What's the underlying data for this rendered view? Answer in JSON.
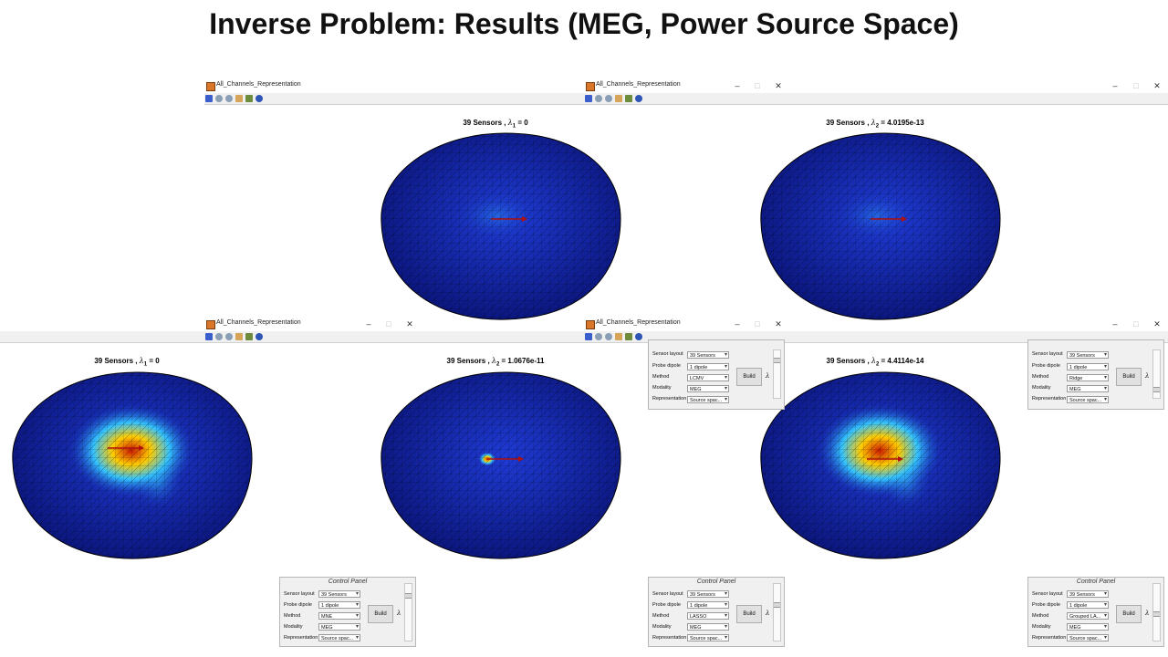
{
  "slide": {
    "title": "Inverse Problem: Results (MEG, Power Source Space)"
  },
  "windows": [
    {
      "title": "All_Channels_Representation"
    },
    {
      "title": "All_Channels_Representation"
    },
    {
      "title": "All_Channels_Representation"
    },
    {
      "title": "All_Channels_Representation"
    }
  ],
  "window_controls": {
    "minimize": "–",
    "maximize": "□",
    "close": "✕"
  },
  "plots": [
    {
      "title": "39 Sensors , ",
      "lambda_symbol": "λ",
      "subscript": "1",
      "value": " = 0",
      "activation": "none",
      "arrow_color": "#b01010"
    },
    {
      "title": "39 Sensors , ",
      "lambda_symbol": "λ",
      "subscript": "2",
      "value": " = 4.0195e-13",
      "activation": "none",
      "arrow_color": "#b01010"
    },
    {
      "title": "39 Sensors , ",
      "lambda_symbol": "λ",
      "subscript": "1",
      "value": " = 0",
      "activation": "broad",
      "arrow_color": "#b01010"
    },
    {
      "title": "39 Sensors , ",
      "lambda_symbol": "λ",
      "subscript": "2",
      "value": " = 1.0676e-11",
      "activation": "focal",
      "arrow_color": "#b01010"
    },
    {
      "title": "39 Sensors , ",
      "lambda_symbol": "λ",
      "subscript": "2",
      "value": " = 4.4114e-14",
      "activation": "broad",
      "arrow_color": "#b01010"
    }
  ],
  "control_panels": [
    {
      "title": "Control Panel",
      "labels": [
        "Sensor layout",
        "Probe dipole",
        "Method",
        "Modality",
        "Representation"
      ],
      "values": [
        "39 Sensors",
        "1 dipole",
        "LCMV",
        "MEG",
        "Source spac..."
      ],
      "build": "Build",
      "lambda": "λ"
    },
    {
      "title": "Control Panel",
      "labels": [
        "Sensor layout",
        "Probe dipole",
        "Method",
        "Modality",
        "Representation"
      ],
      "values": [
        "39 Sensors",
        "1 dipole",
        "Ridge",
        "MEG",
        "Source spac..."
      ],
      "build": "Build",
      "lambda": "λ"
    },
    {
      "title": "Control Panel",
      "labels": [
        "Sensor layout",
        "Probe dipole",
        "Method",
        "Modality",
        "Representation"
      ],
      "values": [
        "39 Sensors",
        "1 dipole",
        "MNE",
        "MEG",
        "Source spac..."
      ],
      "build": "Build",
      "lambda": "λ"
    },
    {
      "title": "Control Panel",
      "labels": [
        "Sensor layout",
        "Probe dipole",
        "Method",
        "Modality",
        "Representation"
      ],
      "values": [
        "39 Sensors",
        "1 dipole",
        "LASSO",
        "MEG",
        "Source spac..."
      ],
      "build": "Build",
      "lambda": "λ"
    },
    {
      "title": "Control Panel",
      "labels": [
        "Sensor layout",
        "Probe dipole",
        "Method",
        "Modality",
        "Representation"
      ],
      "values": [
        "39 Sensors",
        "1 dipole",
        "Grouped LA...",
        "MEG",
        "Source spac..."
      ],
      "build": "Build",
      "lambda": "λ"
    }
  ],
  "colors": {
    "brain_base": "#1528b8",
    "brain_dark": "#0a1478",
    "mesh": "#000000",
    "hot": "#cc1a00",
    "warm": "#ffcc00",
    "cool": "#33c2ff"
  }
}
